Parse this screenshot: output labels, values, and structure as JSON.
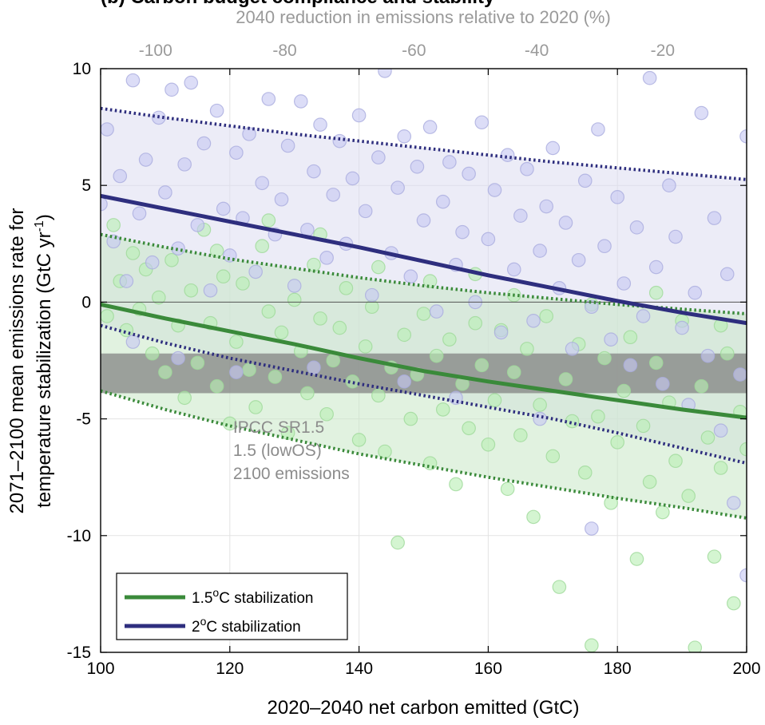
{
  "title_fragment": "(b) Carbon budget compliance and stability",
  "chart_data": {
    "type": "scatter",
    "xlabel": "2020–2040 net carbon emitted (GtC)",
    "ylabel_line1": "2071–2100 mean emissions rate for",
    "ylabel_line2": "temperature stabilization (GtC yr",
    "ylabel_sup": "-1",
    "ylabel_close": ")",
    "top_xlabel": "2040 reduction in emissions relative to 2020 (%)",
    "xlim": [
      100,
      200
    ],
    "ylim": [
      -15,
      10
    ],
    "x_ticks": [
      100,
      120,
      140,
      160,
      180,
      200
    ],
    "x_tick_labels": [
      "100",
      "120",
      "140",
      "160",
      "180",
      "200"
    ],
    "y_ticks": [
      -15,
      -10,
      -5,
      0,
      5,
      10
    ],
    "y_tick_labels": [
      "-15",
      "-10",
      "-5",
      "0",
      "5",
      "10"
    ],
    "top_ticks": [
      {
        "x": 108.5,
        "label": "-100"
      },
      {
        "x": 128.5,
        "label": "-80"
      },
      {
        "x": 148.5,
        "label": "-60"
      },
      {
        "x": 167.5,
        "label": "-40"
      },
      {
        "x": 187.0,
        "label": "-20"
      }
    ],
    "grid": true,
    "zero_line": 0,
    "ipcc_band": {
      "y_low": -3.9,
      "y_high": -2.2,
      "color": "#7f7f7f"
    },
    "annotation_lines": [
      "IPCC SR1.5",
      "1.5 (lowOS)",
      "2100 emissions"
    ],
    "annotation_pos": {
      "x": 120.5,
      "y": -5.6
    },
    "legend": {
      "position": "bottom-left",
      "items": [
        {
          "label_main": "1.5",
          "label_sup": "o",
          "label_rest": "C stabilization",
          "color": "#3a8a3a"
        },
        {
          "label_main": "2",
          "label_sup": "o",
          "label_rest": "C stabilization",
          "color": "#2e2e7e"
        }
      ]
    },
    "series": [
      {
        "name": "1.5°C stabilization",
        "color": "#3a8a3a",
        "band_color": "#c9e8c6",
        "point_fill": "#b9efb4",
        "point_edge": "#9fd99a",
        "median": {
          "x": [
            100,
            110,
            120,
            130,
            140,
            150,
            160,
            170,
            180,
            190,
            200
          ],
          "y": [
            -0.1,
            -0.7,
            -1.25,
            -1.8,
            -2.4,
            -2.95,
            -3.4,
            -3.8,
            -4.2,
            -4.6,
            -4.95
          ]
        },
        "upper": {
          "x": [
            100,
            110,
            120,
            130,
            140,
            150,
            160,
            170,
            180,
            190,
            200
          ],
          "y": [
            2.9,
            2.35,
            1.85,
            1.45,
            1.05,
            0.7,
            0.4,
            0.15,
            -0.1,
            -0.3,
            -0.5
          ]
        },
        "lower": {
          "x": [
            100,
            110,
            120,
            130,
            140,
            150,
            160,
            170,
            180,
            190,
            200
          ],
          "y": [
            -3.8,
            -4.6,
            -5.3,
            -5.9,
            -6.5,
            -7.0,
            -7.5,
            -7.95,
            -8.4,
            -8.8,
            -9.25
          ]
        },
        "points": [
          [
            101,
            -0.6
          ],
          [
            103,
            0.9
          ],
          [
            104,
            -1.2
          ],
          [
            105,
            2.1
          ],
          [
            106,
            -0.3
          ],
          [
            107,
            1.4
          ],
          [
            108,
            -2.2
          ],
          [
            109,
            0.2
          ],
          [
            110,
            -3.0
          ],
          [
            111,
            1.8
          ],
          [
            112,
            -1.0
          ],
          [
            113,
            -4.1
          ],
          [
            114,
            0.5
          ],
          [
            115,
            -2.6
          ],
          [
            116,
            3.1
          ],
          [
            117,
            -0.9
          ],
          [
            118,
            -3.6
          ],
          [
            119,
            1.1
          ],
          [
            120,
            -5.2
          ],
          [
            121,
            -1.7
          ],
          [
            122,
            0.8
          ],
          [
            123,
            -2.9
          ],
          [
            124,
            -4.5
          ],
          [
            125,
            2.4
          ],
          [
            126,
            -0.4
          ],
          [
            127,
            -3.2
          ],
          [
            128,
            -1.3
          ],
          [
            129,
            -5.6
          ],
          [
            130,
            0.1
          ],
          [
            131,
            -2.1
          ],
          [
            132,
            -3.9
          ],
          [
            133,
            1.6
          ],
          [
            134,
            -0.7
          ],
          [
            135,
            -4.8
          ],
          [
            136,
            -2.5
          ],
          [
            137,
            -1.1
          ],
          [
            138,
            0.6
          ],
          [
            139,
            -3.4
          ],
          [
            140,
            -5.9
          ],
          [
            141,
            -1.9
          ],
          [
            142,
            -0.2
          ],
          [
            143,
            -4.0
          ],
          [
            144,
            -6.4
          ],
          [
            145,
            -2.8
          ],
          [
            146,
            -10.3
          ],
          [
            147,
            -1.4
          ],
          [
            148,
            -5.0
          ],
          [
            149,
            -3.1
          ],
          [
            150,
            -0.5
          ],
          [
            151,
            -6.9
          ],
          [
            152,
            -2.3
          ],
          [
            153,
            -4.6
          ],
          [
            154,
            -1.6
          ],
          [
            155,
            -7.8
          ],
          [
            156,
            -3.5
          ],
          [
            157,
            -5.4
          ],
          [
            158,
            -0.9
          ],
          [
            159,
            -2.7
          ],
          [
            160,
            -6.1
          ],
          [
            161,
            -4.2
          ],
          [
            162,
            -1.2
          ],
          [
            163,
            -8.0
          ],
          [
            164,
            -3.0
          ],
          [
            165,
            -5.7
          ],
          [
            166,
            -2.0
          ],
          [
            167,
            -9.2
          ],
          [
            168,
            -4.4
          ],
          [
            169,
            -0.6
          ],
          [
            170,
            -6.6
          ],
          [
            171,
            -12.2
          ],
          [
            172,
            -3.3
          ],
          [
            173,
            -5.1
          ],
          [
            174,
            -1.8
          ],
          [
            175,
            -7.3
          ],
          [
            176,
            -14.7
          ],
          [
            177,
            -4.9
          ],
          [
            178,
            -2.4
          ],
          [
            179,
            -8.6
          ],
          [
            180,
            -6.0
          ],
          [
            181,
            -3.8
          ],
          [
            182,
            -1.5
          ],
          [
            183,
            -11.0
          ],
          [
            184,
            -5.3
          ],
          [
            185,
            -7.7
          ],
          [
            186,
            -2.6
          ],
          [
            187,
            -9.0
          ],
          [
            188,
            -4.3
          ],
          [
            189,
            -6.8
          ],
          [
            190,
            -0.8
          ],
          [
            191,
            -8.3
          ],
          [
            192,
            -14.8
          ],
          [
            193,
            -3.6
          ],
          [
            194,
            -5.8
          ],
          [
            195,
            -10.9
          ],
          [
            196,
            -7.1
          ],
          [
            197,
            -2.2
          ],
          [
            198,
            -12.9
          ],
          [
            199,
            -4.7
          ],
          [
            200,
            -6.3
          ],
          [
            102,
            3.3
          ],
          [
            118,
            2.2
          ],
          [
            126,
            3.5
          ],
          [
            134,
            2.9
          ],
          [
            143,
            1.5
          ],
          [
            151,
            0.9
          ],
          [
            158,
            1.2
          ],
          [
            164,
            0.3
          ],
          [
            176,
            -0.1
          ],
          [
            186,
            0.4
          ],
          [
            196,
            -1.0
          ]
        ]
      },
      {
        "name": "2°C stabilization",
        "color": "#2e2e7e",
        "band_color": "#dcdcf0",
        "point_fill": "#c6c8f2",
        "point_edge": "#aaacdf",
        "median": {
          "x": [
            100,
            110,
            120,
            130,
            140,
            150,
            160,
            170,
            180,
            190,
            200
          ],
          "y": [
            4.55,
            4.0,
            3.45,
            2.9,
            2.35,
            1.75,
            1.15,
            0.6,
            0.05,
            -0.45,
            -0.9
          ]
        },
        "upper": {
          "x": [
            100,
            110,
            120,
            130,
            140,
            150,
            160,
            170,
            180,
            190,
            200
          ],
          "y": [
            8.3,
            7.9,
            7.55,
            7.2,
            6.9,
            6.6,
            6.3,
            6.0,
            5.75,
            5.5,
            5.25
          ]
        },
        "lower": {
          "x": [
            100,
            110,
            120,
            130,
            140,
            150,
            160,
            170,
            180,
            190,
            200
          ],
          "y": [
            -1.0,
            -1.75,
            -2.4,
            -2.95,
            -3.5,
            -4.0,
            -4.5,
            -5.0,
            -5.6,
            -6.25,
            -6.9
          ]
        },
        "points": [
          [
            100,
            4.2
          ],
          [
            101,
            7.4
          ],
          [
            102,
            2.6
          ],
          [
            103,
            5.4
          ],
          [
            104,
            0.9
          ],
          [
            105,
            9.5
          ],
          [
            106,
            3.8
          ],
          [
            107,
            6.1
          ],
          [
            108,
            1.7
          ],
          [
            109,
            7.9
          ],
          [
            110,
            4.7
          ],
          [
            111,
            9.1
          ],
          [
            112,
            2.3
          ],
          [
            113,
            5.9
          ],
          [
            114,
            9.4
          ],
          [
            115,
            3.3
          ],
          [
            116,
            6.8
          ],
          [
            117,
            0.5
          ],
          [
            118,
            8.2
          ],
          [
            119,
            4.0
          ],
          [
            120,
            2.0
          ],
          [
            121,
            6.4
          ],
          [
            122,
            3.6
          ],
          [
            123,
            7.2
          ],
          [
            124,
            1.3
          ],
          [
            125,
            5.1
          ],
          [
            126,
            8.7
          ],
          [
            127,
            2.9
          ],
          [
            128,
            4.4
          ],
          [
            129,
            6.7
          ],
          [
            130,
            0.7
          ],
          [
            131,
            8.6
          ],
          [
            132,
            3.1
          ],
          [
            133,
            5.6
          ],
          [
            134,
            7.6
          ],
          [
            135,
            1.9
          ],
          [
            136,
            4.6
          ],
          [
            137,
            6.9
          ],
          [
            138,
            2.5
          ],
          [
            139,
            5.3
          ],
          [
            140,
            8.0
          ],
          [
            141,
            3.9
          ],
          [
            142,
            0.3
          ],
          [
            143,
            6.2
          ],
          [
            144,
            9.9
          ],
          [
            145,
            2.1
          ],
          [
            146,
            4.9
          ],
          [
            147,
            7.1
          ],
          [
            148,
            1.1
          ],
          [
            149,
            5.8
          ],
          [
            150,
            3.5
          ],
          [
            151,
            7.5
          ],
          [
            152,
            -0.4
          ],
          [
            153,
            4.3
          ],
          [
            154,
            6.0
          ],
          [
            155,
            1.6
          ],
          [
            156,
            3.0
          ],
          [
            157,
            5.5
          ],
          [
            158,
            0.0
          ],
          [
            159,
            7.7
          ],
          [
            160,
            2.7
          ],
          [
            161,
            4.8
          ],
          [
            162,
            -1.3
          ],
          [
            163,
            6.3
          ],
          [
            164,
            1.4
          ],
          [
            165,
            3.7
          ],
          [
            166,
            5.7
          ],
          [
            167,
            -0.8
          ],
          [
            168,
            2.2
          ],
          [
            169,
            4.1
          ],
          [
            170,
            6.6
          ],
          [
            171,
            0.6
          ],
          [
            172,
            3.4
          ],
          [
            173,
            -2.0
          ],
          [
            174,
            1.8
          ],
          [
            175,
            5.2
          ],
          [
            176,
            -0.2
          ],
          [
            177,
            7.4
          ],
          [
            178,
            2.4
          ],
          [
            179,
            -1.6
          ],
          [
            180,
            4.5
          ],
          [
            181,
            0.8
          ],
          [
            182,
            -2.7
          ],
          [
            183,
            3.2
          ],
          [
            184,
            -0.6
          ],
          [
            185,
            9.6
          ],
          [
            186,
            1.5
          ],
          [
            187,
            -3.5
          ],
          [
            188,
            5.0
          ],
          [
            189,
            2.8
          ],
          [
            190,
            -1.1
          ],
          [
            191,
            -4.4
          ],
          [
            192,
            0.4
          ],
          [
            193,
            8.1
          ],
          [
            194,
            -2.3
          ],
          [
            195,
            3.6
          ],
          [
            196,
            -5.5
          ],
          [
            197,
            1.2
          ],
          [
            198,
            -8.6
          ],
          [
            199,
            -3.1
          ],
          [
            200,
            -11.7
          ],
          [
            200,
            7.1
          ],
          [
            105,
            -1.7
          ],
          [
            112,
            -2.4
          ],
          [
            121,
            -3.0
          ],
          [
            133,
            -2.8
          ],
          [
            147,
            -3.4
          ],
          [
            155,
            -4.1
          ],
          [
            168,
            -5.0
          ],
          [
            176,
            -9.7
          ]
        ]
      }
    ]
  }
}
